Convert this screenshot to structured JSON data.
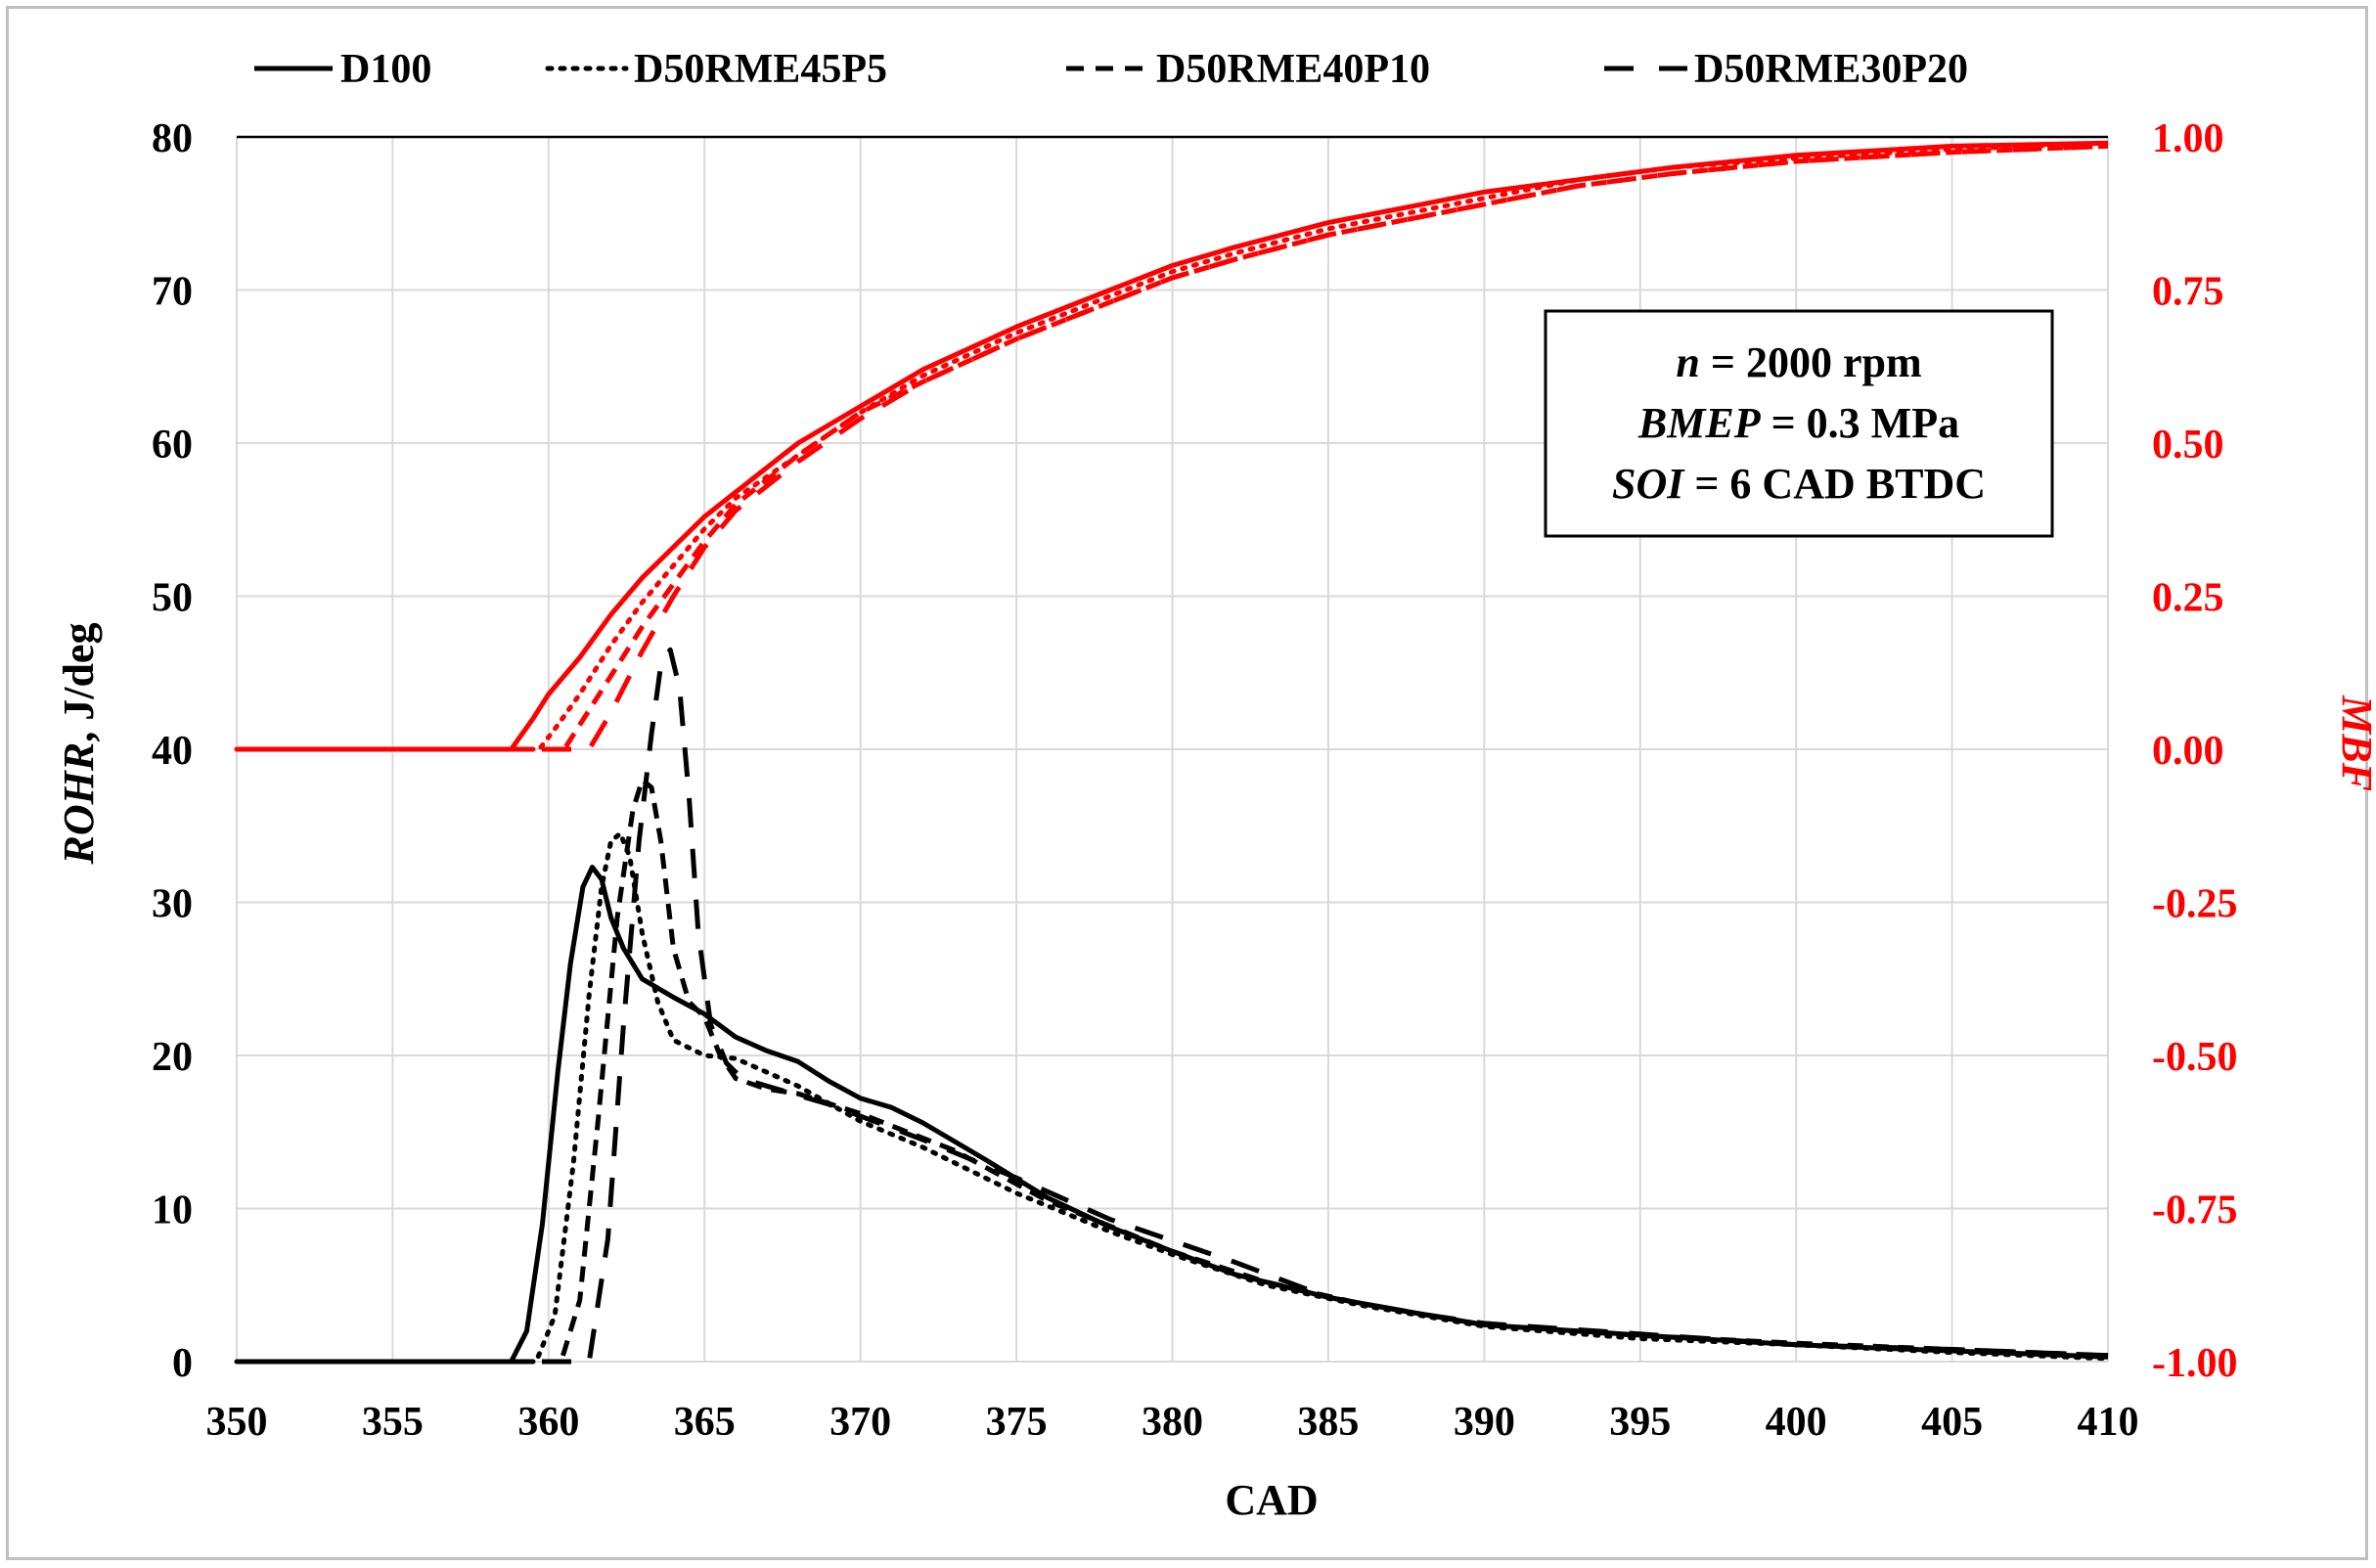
{
  "chart_data": {
    "type": "line",
    "title": "",
    "xlabel": "CAD",
    "ylabel": "ROHR, J/deg",
    "ylabel_italic_part": "ROHR",
    "ylabel_rest": ", J/deg",
    "y2label": "MBF",
    "xlim": [
      350,
      410
    ],
    "ylim": [
      0,
      80
    ],
    "y2lim": [
      -1.0,
      1.0
    ],
    "x_ticks": [
      350,
      355,
      360,
      365,
      370,
      375,
      380,
      385,
      390,
      395,
      400,
      405,
      410
    ],
    "y_ticks": [
      0,
      10,
      20,
      30,
      40,
      50,
      60,
      70,
      80
    ],
    "y2_ticks": [
      "-1.00",
      "-0.75",
      "-0.50",
      "-0.25",
      "0.00",
      "0.25",
      "0.50",
      "0.75",
      "1.00"
    ],
    "grid": true,
    "colors": {
      "rohr": "#000000",
      "mbf": "#ff0000",
      "grid": "#d9d9d9",
      "axis": "#000000"
    },
    "legend": {
      "position": "top",
      "entries": [
        {
          "name": "D100",
          "dash": "solid"
        },
        {
          "name": "D50RME45P5",
          "dash": "dot"
        },
        {
          "name": "D50RME40P10",
          "dash": "dash"
        },
        {
          "name": "D50RME30P20",
          "dash": "longdash"
        }
      ]
    },
    "annotation": {
      "position": "upper-right",
      "lines": [
        {
          "italic": "n",
          "rest": " = 2000 rpm"
        },
        {
          "italic": "BMEP",
          "rest": " = 0.3 MPa"
        },
        {
          "italic": "SOI",
          "rest": " = 6 CAD BTDC"
        }
      ]
    },
    "series": [
      {
        "name": "D100",
        "axis": "left",
        "quantity": "ROHR",
        "dash": "solid",
        "x": [
          350,
          358.8,
          359.3,
          359.8,
          360.3,
          360.7,
          361.1,
          361.4,
          361.7,
          362.0,
          362.4,
          363.0,
          364.0,
          365.0,
          366.0,
          367.0,
          368.0,
          369.0,
          370.0,
          371.0,
          372.0,
          374.0,
          376.0,
          378.0,
          380.0,
          382.0,
          385.0,
          388.0,
          390.0,
          393.0,
          396.0,
          400.0,
          405.0,
          410.0
        ],
        "y": [
          0,
          0,
          2,
          9,
          19,
          26,
          31,
          32.3,
          31.5,
          29,
          27,
          25,
          23.8,
          22.7,
          21.2,
          20.3,
          19.6,
          18.3,
          17.2,
          16.6,
          15.6,
          13.2,
          10.7,
          8.8,
          7.2,
          5.7,
          4.2,
          3.1,
          2.4,
          2.0,
          1.6,
          1.1,
          0.7,
          0.3
        ]
      },
      {
        "name": "D50RME45P5",
        "axis": "left",
        "quantity": "ROHR",
        "dash": "dot",
        "x": [
          350,
          359.6,
          360.2,
          360.8,
          361.3,
          361.7,
          362.0,
          362.3,
          362.6,
          363.0,
          363.5,
          364.0,
          365.0,
          366.0,
          368.0,
          370.0,
          372.0,
          375.0,
          378.0,
          380.0,
          383.0,
          386.0,
          390.0,
          395.0,
          400.0,
          405.0,
          410.0
        ],
        "y": [
          0,
          0,
          3,
          13,
          24,
          31,
          34,
          34.5,
          33,
          28,
          23.5,
          21,
          20,
          19.8,
          18,
          15.7,
          14,
          11,
          8.5,
          7,
          5,
          3.7,
          2.3,
          1.5,
          1.1,
          0.6,
          0.2
        ]
      },
      {
        "name": "D50RME40P10",
        "axis": "left",
        "quantity": "ROHR",
        "dash": "dash",
        "x": [
          350,
          360.4,
          361.0,
          361.6,
          362.2,
          362.7,
          363.0,
          363.3,
          363.6,
          364.0,
          364.5,
          365.0,
          365.5,
          366.0,
          367.0,
          368.0,
          370.0,
          373.0,
          376.0,
          380.0,
          383.0,
          386.0,
          390.0,
          395.0,
          400.0,
          405.0,
          410.0
        ],
        "y": [
          0,
          0,
          4,
          16,
          29,
          36,
          38,
          37.5,
          34,
          27,
          23.5,
          22.5,
          20,
          18.5,
          17.8,
          17.5,
          16.2,
          13.8,
          10.5,
          7.2,
          5.2,
          3.8,
          2.4,
          1.7,
          1.2,
          0.8,
          0.4
        ]
      },
      {
        "name": "D50RME30P20",
        "axis": "left",
        "quantity": "ROHR",
        "dash": "longdash",
        "x": [
          350,
          361.3,
          361.9,
          362.4,
          362.9,
          363.3,
          363.6,
          363.9,
          364.2,
          364.5,
          364.8,
          365.2,
          365.7,
          366.2,
          367.0,
          369.0,
          372.0,
          375.0,
          378.0,
          382.0,
          385.0,
          388.0,
          390.0,
          395.0,
          400.0,
          405.0,
          410.0
        ],
        "y": [
          0,
          0,
          8,
          22,
          34,
          41,
          45.5,
          46.5,
          44,
          37,
          28,
          22,
          19.5,
          18.5,
          18,
          16.8,
          14.5,
          12,
          9.3,
          6.5,
          4.2,
          3.1,
          2.5,
          1.8,
          1.1,
          0.8,
          0.4
        ]
      },
      {
        "name": "D100",
        "axis": "right",
        "quantity": "MBF",
        "dash": "solid",
        "x": [
          350,
          358.8,
          359.5,
          360.0,
          361.0,
          362.0,
          363.0,
          364.0,
          365.0,
          366.0,
          368.0,
          370.0,
          372.0,
          375.0,
          378.0,
          380.0,
          382.0,
          385.0,
          388.0,
          390.0,
          393.0,
          396.0,
          400.0,
          405.0,
          410.0
        ],
        "y": [
          0.0,
          0.0,
          0.05,
          0.09,
          0.15,
          0.22,
          0.28,
          0.33,
          0.38,
          0.42,
          0.5,
          0.56,
          0.62,
          0.69,
          0.75,
          0.79,
          0.82,
          0.86,
          0.89,
          0.91,
          0.93,
          0.95,
          0.97,
          0.985,
          0.99
        ]
      },
      {
        "name": "D50RME45P5",
        "axis": "right",
        "quantity": "MBF",
        "dash": "dot",
        "x": [
          350,
          359.7,
          360.3,
          361.0,
          362.0,
          363.0,
          364.0,
          365.0,
          366.0,
          368.0,
          370.0,
          372.0,
          375.0,
          378.0,
          380.0,
          382.0,
          385.0,
          388.0,
          390.0,
          393.0,
          396.0,
          400.0,
          405.0,
          410.0
        ],
        "y": [
          0.0,
          0.0,
          0.04,
          0.09,
          0.17,
          0.24,
          0.3,
          0.36,
          0.41,
          0.48,
          0.55,
          0.61,
          0.68,
          0.74,
          0.78,
          0.81,
          0.85,
          0.88,
          0.9,
          0.93,
          0.95,
          0.965,
          0.98,
          0.99
        ]
      },
      {
        "name": "D50RME40P10",
        "axis": "right",
        "quantity": "MBF",
        "dash": "dash",
        "x": [
          350,
          360.5,
          361.0,
          362.0,
          363.0,
          364.0,
          365.0,
          366.0,
          368.0,
          370.0,
          372.0,
          375.0,
          378.0,
          380.0,
          382.0,
          385.0,
          388.0,
          390.0,
          393.0,
          396.0,
          400.0,
          405.0,
          410.0
        ],
        "y": [
          0.0,
          0.0,
          0.04,
          0.12,
          0.2,
          0.27,
          0.34,
          0.4,
          0.48,
          0.55,
          0.6,
          0.67,
          0.73,
          0.77,
          0.8,
          0.84,
          0.87,
          0.89,
          0.92,
          0.94,
          0.96,
          0.975,
          0.985
        ]
      },
      {
        "name": "D50RME30P20",
        "axis": "right",
        "quantity": "MBF",
        "dash": "longdash",
        "x": [
          350,
          361.3,
          362.0,
          363.0,
          364.0,
          365.0,
          366.0,
          368.0,
          370.0,
          372.0,
          375.0,
          378.0,
          380.0,
          382.0,
          385.0,
          388.0,
          390.0,
          393.0,
          396.0,
          400.0,
          405.0,
          410.0
        ],
        "y": [
          0.0,
          0.0,
          0.06,
          0.16,
          0.25,
          0.33,
          0.39,
          0.47,
          0.54,
          0.6,
          0.67,
          0.73,
          0.77,
          0.8,
          0.84,
          0.87,
          0.89,
          0.92,
          0.94,
          0.96,
          0.975,
          0.985
        ]
      }
    ]
  }
}
